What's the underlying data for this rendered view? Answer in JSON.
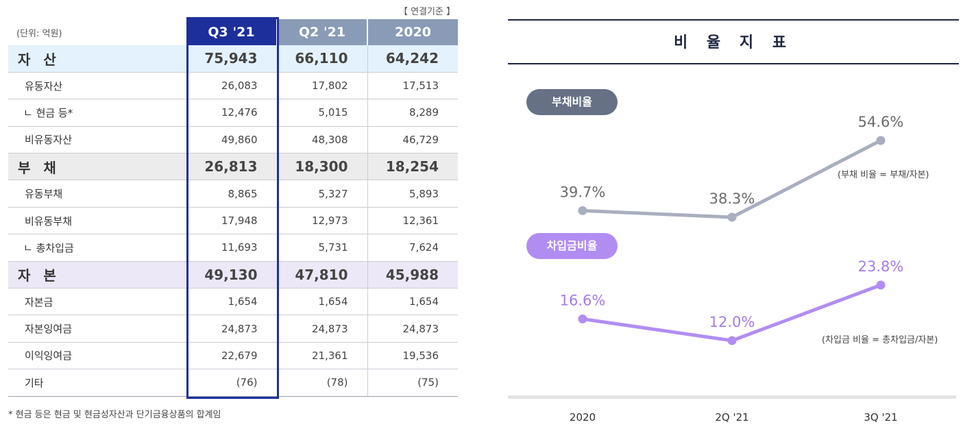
{
  "table": {
    "basis_note": "【 연결기준 】",
    "unit_note": "(단위: 억원)",
    "columns": [
      "Q3 '21",
      "Q2 '21",
      "2020"
    ],
    "rows": [
      {
        "label": "자 산",
        "kind": "section-asset",
        "values": [
          "75,943",
          "66,110",
          "64,242"
        ]
      },
      {
        "label": "유동자산",
        "kind": "item",
        "values": [
          "26,083",
          "17,802",
          "17,513"
        ]
      },
      {
        "label": "ㄴ 현금 등*",
        "kind": "sub",
        "values": [
          "12,476",
          "5,015",
          "8,289"
        ]
      },
      {
        "label": "비유동자산",
        "kind": "item",
        "values": [
          "49,860",
          "48,308",
          "46,729"
        ]
      },
      {
        "label": "부 채",
        "kind": "section-debt",
        "values": [
          "26,813",
          "18,300",
          "18,254"
        ]
      },
      {
        "label": "유동부채",
        "kind": "item",
        "values": [
          "8,865",
          "5,327",
          "5,893"
        ]
      },
      {
        "label": "비유동부채",
        "kind": "item",
        "values": [
          "17,948",
          "12,973",
          "12,361"
        ]
      },
      {
        "label": "ㄴ 총차입금",
        "kind": "sub",
        "values": [
          "11,693",
          "5,731",
          "7,624"
        ]
      },
      {
        "label": "자 본",
        "kind": "section-equity",
        "values": [
          "49,130",
          "47,810",
          "45,988"
        ]
      },
      {
        "label": "자본금",
        "kind": "item",
        "values": [
          "1,654",
          "1,654",
          "1,654"
        ]
      },
      {
        "label": "자본잉여금",
        "kind": "item",
        "values": [
          "24,873",
          "24,873",
          "24,873"
        ]
      },
      {
        "label": "이익잉여금",
        "kind": "item",
        "values": [
          "22,679",
          "21,361",
          "19,536"
        ]
      },
      {
        "label": "기타",
        "kind": "item",
        "values": [
          "(76)",
          "(78)",
          "(75)"
        ]
      }
    ],
    "footnote": "* 현금 등은 현금 및 현금성자산과 단기금융상품의 합계임"
  },
  "chart_data": {
    "type": "line",
    "title": "비 율 지 표",
    "categories": [
      "2020",
      "2Q '21",
      "3Q '21"
    ],
    "series": [
      {
        "name": "부채비율",
        "values": [
          39.7,
          38.3,
          54.6
        ],
        "labels": [
          "39.7%",
          "38.3%",
          "54.6%"
        ],
        "formula": "(부채 비율 = 부채/자본)",
        "color": "#a9aec0",
        "label_color": "#6b6b6b"
      },
      {
        "name": "차입금비율",
        "values": [
          16.6,
          12.0,
          23.8
        ],
        "labels": [
          "16.6%",
          "12.0%",
          "23.8%"
        ],
        "formula": "(차입금 비율 = 총차입금/자본)",
        "color": "#b18df2",
        "label_color": "#a47ce8"
      }
    ],
    "xlabel": "",
    "ylabel": ""
  }
}
